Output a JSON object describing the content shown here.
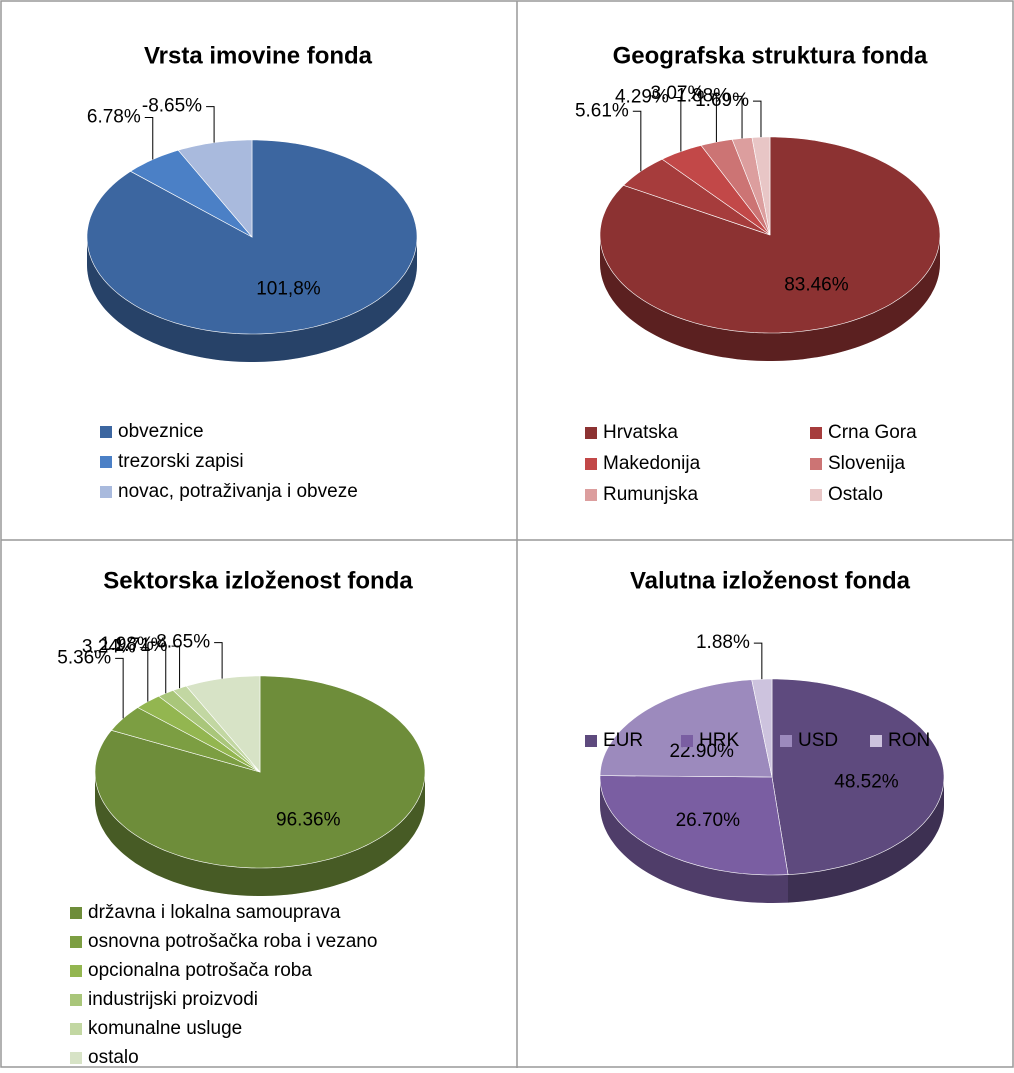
{
  "chart_data": [
    {
      "type": "pie",
      "title": "Vrsta imovine fonda",
      "categories": [
        "obveznice",
        "trezorski zapisi",
        "novac, potraživanja i obveze"
      ],
      "values": [
        101.8,
        6.78,
        -8.65
      ],
      "value_labels": [
        "101,8%",
        "6.78%",
        "-8.65%"
      ],
      "colors": [
        "#3c66a0",
        "#4b80c6",
        "#a9badd"
      ]
    },
    {
      "type": "pie",
      "title": "Geografska struktura fonda",
      "categories": [
        "Hrvatska",
        "Crna Gora",
        "Makedonija",
        "Slovenija",
        "Rumunjska",
        "Ostalo"
      ],
      "values": [
        83.46,
        5.61,
        4.29,
        3.07,
        1.88,
        1.69
      ],
      "value_labels": [
        "83.46%",
        "5.61%",
        "4.29%",
        "3.07%",
        "1.88%",
        "1.69%"
      ],
      "colors": [
        "#8c3232",
        "#a63c3c",
        "#c24848",
        "#cc7474",
        "#dc9e9e",
        "#e8c6c6"
      ]
    },
    {
      "type": "pie",
      "title": "Sektorska izloženost fonda",
      "categories": [
        "državna i lokalna samouprava",
        "osnovna potrošačka roba i vezano",
        "opcionalna potrošača roba",
        "industrijski proizvodi",
        "komunalne usluge",
        "ostalo"
      ],
      "values": [
        96.36,
        5.36,
        3.24,
        1.98,
        1.71,
        -8.65
      ],
      "value_labels": [
        "96.36%",
        "5.36%",
        "3.24%",
        "1.98%",
        "1.71%",
        "-8.65%"
      ],
      "colors": [
        "#6e8d3a",
        "#7c9e42",
        "#93b650",
        "#a9c67a",
        "#c2d7a2",
        "#d7e3c6"
      ]
    },
    {
      "type": "pie",
      "title": "Valutna izloženost fonda",
      "categories": [
        "EUR",
        "HRK",
        "USD",
        "RON"
      ],
      "values": [
        48.52,
        26.7,
        22.9,
        1.88
      ],
      "value_labels": [
        "48.52%",
        "26.70%",
        "22.90%",
        "1.88%"
      ],
      "colors": [
        "#5e4a7e",
        "#7a5ea2",
        "#9c8abd",
        "#cdc3de"
      ]
    }
  ]
}
